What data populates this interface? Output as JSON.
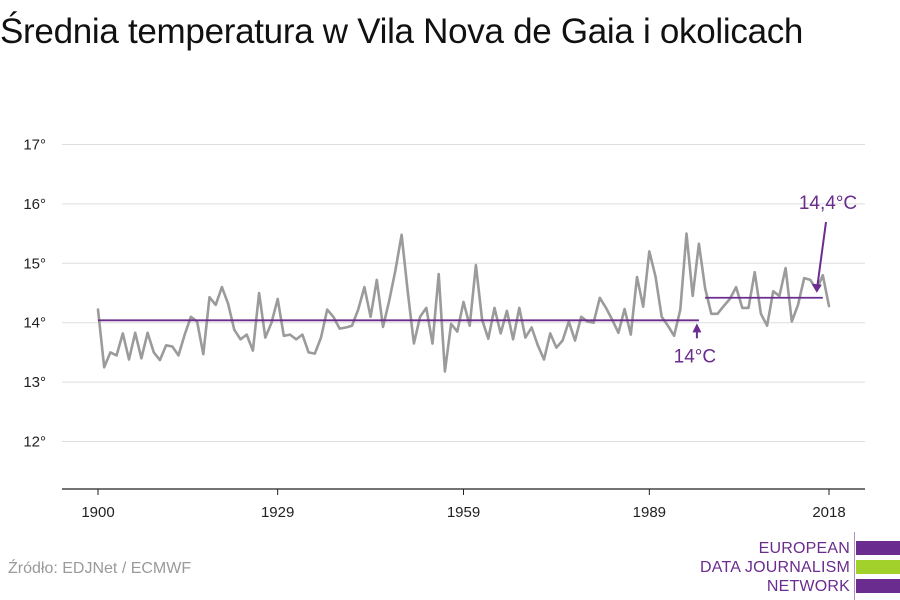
{
  "title": "Średnia temperatura w Vila Nova de Gaia i okolicach",
  "source": "Źródło: EDJNet / ECMWF",
  "logo": {
    "lines": [
      "EUROPEAN",
      "DATA JOURNALISM",
      "NETWORK"
    ],
    "colors": [
      "#6a2c8e",
      "#a3d12c",
      "#6a2c8e"
    ]
  },
  "colors": {
    "series": "#9b9b9b",
    "accent": "#6a2c8e",
    "grid": "#dddddd",
    "axis": "#222222"
  },
  "chart_data": {
    "type": "line",
    "title": "Średnia temperatura w Vila Nova de Gaia i okolicach",
    "xlabel": "",
    "ylabel": "",
    "xlim": [
      1900,
      2018
    ],
    "ylim": [
      12,
      17
    ],
    "grid": true,
    "x_ticks": [
      1900,
      1929,
      1959,
      1989,
      2018
    ],
    "x_tick_labels": [
      "1900",
      "1929",
      "1959",
      "1989",
      "2018"
    ],
    "y_ticks": [
      12,
      13,
      14,
      15,
      16,
      17
    ],
    "y_tick_labels": [
      "12°",
      "13°",
      "14°",
      "15°",
      "16°",
      "17°"
    ],
    "series": [
      {
        "x": [
          1900,
          1901,
          1902,
          1903,
          1904,
          1905,
          1906,
          1907,
          1908,
          1909,
          1910,
          1911,
          1912,
          1913,
          1914,
          1915,
          1916,
          1917,
          1918,
          1919,
          1920,
          1921,
          1922,
          1923,
          1924,
          1925,
          1926,
          1927,
          1928,
          1929,
          1930,
          1931,
          1932,
          1933,
          1934,
          1935,
          1936,
          1937,
          1938,
          1939,
          1940,
          1941,
          1942,
          1943,
          1944,
          1945,
          1946,
          1947,
          1948,
          1949,
          1950,
          1951,
          1952,
          1953,
          1954,
          1955,
          1956,
          1957,
          1958,
          1959,
          1960,
          1961,
          1962,
          1963,
          1964,
          1965,
          1966,
          1967,
          1968,
          1969,
          1970,
          1971,
          1972,
          1973,
          1974,
          1975,
          1976,
          1977,
          1978,
          1979,
          1980,
          1981,
          1982,
          1983,
          1984,
          1985,
          1986,
          1987,
          1988,
          1989,
          1990,
          1991,
          1992,
          1993,
          1994,
          1995,
          1996,
          1997,
          1998,
          1999,
          2000,
          2001,
          2002,
          2003,
          2004,
          2005,
          2006,
          2007,
          2008,
          2009,
          2010,
          2011,
          2012,
          2013,
          2014,
          2015,
          2016,
          2017,
          2018
        ],
        "values": [
          14.22,
          13.25,
          13.5,
          13.45,
          13.82,
          13.38,
          13.83,
          13.4,
          13.83,
          13.5,
          13.37,
          13.62,
          13.6,
          13.45,
          13.8,
          14.1,
          14.02,
          13.47,
          14.43,
          14.3,
          14.6,
          14.32,
          13.88,
          13.72,
          13.8,
          13.53,
          14.5,
          13.75,
          14.0,
          14.4,
          13.78,
          13.8,
          13.72,
          13.8,
          13.5,
          13.48,
          13.75,
          14.22,
          14.1,
          13.9,
          13.92,
          13.95,
          14.22,
          14.6,
          14.1,
          14.72,
          13.93,
          14.37,
          14.88,
          15.48,
          14.53,
          13.65,
          14.1,
          14.25,
          13.65,
          14.82,
          13.18,
          13.98,
          13.85,
          14.35,
          13.95,
          14.97,
          14.05,
          13.73,
          14.25,
          13.82,
          14.2,
          13.72,
          14.25,
          13.75,
          13.92,
          13.62,
          13.38,
          13.82,
          13.58,
          13.7,
          14.02,
          13.7,
          14.1,
          14.02,
          14.0,
          14.42,
          14.25,
          14.05,
          13.83,
          14.23,
          13.8,
          14.77,
          14.27,
          15.2,
          14.78,
          14.1,
          13.95,
          13.78,
          14.22,
          15.5,
          14.45,
          15.33,
          14.58,
          14.15,
          14.15,
          14.28,
          14.4,
          14.6,
          14.25,
          14.25,
          14.85,
          14.15,
          13.95,
          14.53,
          14.45,
          14.92,
          14.02,
          14.3,
          14.75,
          14.72,
          14.55,
          14.8,
          14.28
        ]
      }
    ],
    "reference_lines": [
      {
        "label": "14°C",
        "value": 14.04,
        "x_start": 1900,
        "x_end": 1997
      },
      {
        "label": "14,4°C",
        "value": 14.42,
        "x_start": 1998,
        "x_end": 2017
      }
    ]
  }
}
